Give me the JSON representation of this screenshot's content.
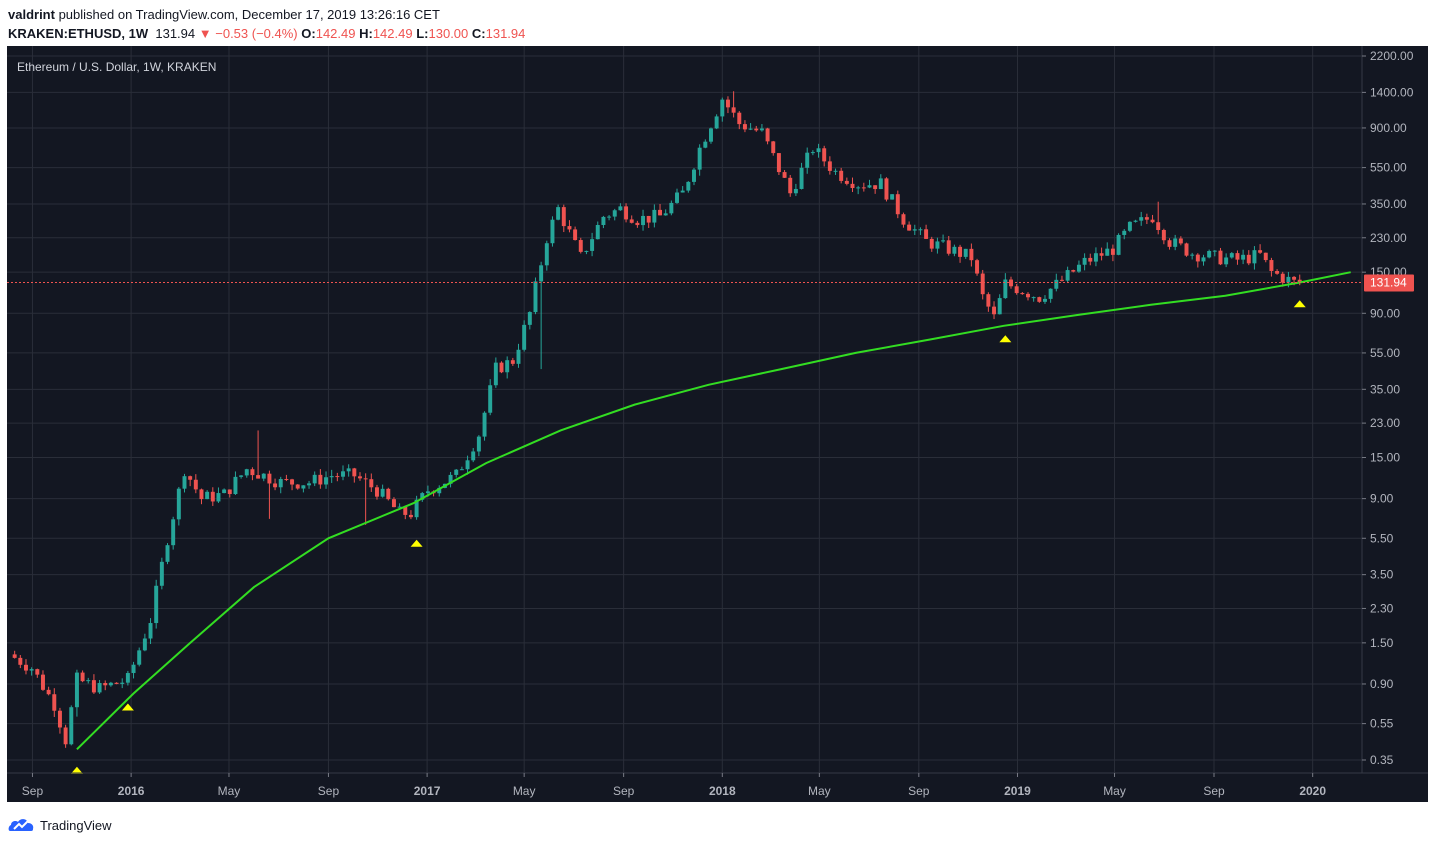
{
  "header": {
    "publisher": "valdrint",
    "published_text": " published on TradingView.com, December 17, 2019 13:26:16 CET",
    "symbol": "KRAKEN:ETHUSD, 1W",
    "last": "131.94",
    "change_arrow": "▼",
    "change": "−0.53 (−0.4%)",
    "o_label": "O:",
    "o_value": "142.49",
    "h_label": "H:",
    "h_value": "142.49",
    "l_label": "L:",
    "l_value": "130.00",
    "c_label": "C:",
    "c_value": "131.94"
  },
  "footer": {
    "brand": "TradingView",
    "brand_icon": "tradingview-logo-icon"
  },
  "colors": {
    "background": "#131722",
    "grid": "#2a2e39",
    "up": "#26a69a",
    "down": "#ef5350",
    "trendline": "#33dd22",
    "marker": "#ffff00",
    "text": "#b2b5be",
    "price_line": "#ef5350"
  },
  "chart_data": {
    "type": "candlestick",
    "title": "Ethereum / U.S. Dollar, 1W, KRAKEN",
    "y_scale": "log",
    "y_ticks": [
      "2200.00",
      "1400.00",
      "900.00",
      "550.00",
      "350.00",
      "230.00",
      "150.00",
      "90.00",
      "55.00",
      "35.00",
      "23.00",
      "15.00",
      "9.00",
      "5.50",
      "3.50",
      "2.30",
      "1.50",
      "0.90",
      "0.55",
      "0.35"
    ],
    "x_ticks": [
      {
        "label": "Sep",
        "date": "2015-09-01",
        "bold": false
      },
      {
        "label": "2016",
        "date": "2016-01-01",
        "bold": true
      },
      {
        "label": "May",
        "date": "2016-05-01",
        "bold": false
      },
      {
        "label": "Sep",
        "date": "2016-09-01",
        "bold": false
      },
      {
        "label": "2017",
        "date": "2017-01-01",
        "bold": true
      },
      {
        "label": "May",
        "date": "2017-05-01",
        "bold": false
      },
      {
        "label": "Sep",
        "date": "2017-09-01",
        "bold": false
      },
      {
        "label": "2018",
        "date": "2018-01-01",
        "bold": true
      },
      {
        "label": "May",
        "date": "2018-05-01",
        "bold": false
      },
      {
        "label": "Sep",
        "date": "2018-09-01",
        "bold": false
      },
      {
        "label": "2019",
        "date": "2019-01-01",
        "bold": true
      },
      {
        "label": "May",
        "date": "2019-05-01",
        "bold": false
      },
      {
        "label": "Sep",
        "date": "2019-09-01",
        "bold": false
      },
      {
        "label": "2020",
        "date": "2020-01-01",
        "bold": true
      }
    ],
    "last_price_label": "131.94",
    "last_price": 131.94,
    "price_path": [
      [
        "2015-08-10",
        1.3
      ],
      [
        "2015-09-07",
        1.1
      ],
      [
        "2015-10-05",
        0.7
      ],
      [
        "2015-10-19",
        0.45
      ],
      [
        "2015-11-02",
        0.95
      ],
      [
        "2015-11-30",
        0.85
      ],
      [
        "2016-01-04",
        0.95
      ],
      [
        "2016-02-01",
        2.0
      ],
      [
        "2016-02-22",
        5.5
      ],
      [
        "2016-03-14",
        13.0
      ],
      [
        "2016-04-04",
        9.0
      ],
      [
        "2016-05-02",
        9.5
      ],
      [
        "2016-05-30",
        13.0
      ],
      [
        "2016-06-20",
        12.0
      ],
      [
        "2016-07-11",
        11.0
      ],
      [
        "2016-08-15",
        11.0
      ],
      [
        "2016-09-12",
        12.0
      ],
      [
        "2016-10-10",
        12.0
      ],
      [
        "2016-11-07",
        10.0
      ],
      [
        "2016-12-05",
        7.5
      ],
      [
        "2016-12-19",
        7.5
      ],
      [
        "2017-01-09",
        10.0
      ],
      [
        "2017-02-13",
        12.0
      ],
      [
        "2017-03-13",
        20.0
      ],
      [
        "2017-04-03",
        45.0
      ],
      [
        "2017-04-24",
        50.0
      ],
      [
        "2017-05-15",
        90.0
      ],
      [
        "2017-06-05",
        230.0
      ],
      [
        "2017-06-19",
        330.0
      ],
      [
        "2017-07-17",
        180.0
      ],
      [
        "2017-08-14",
        300.0
      ],
      [
        "2017-09-04",
        330.0
      ],
      [
        "2017-09-25",
        290.0
      ],
      [
        "2017-10-23",
        300.0
      ],
      [
        "2017-11-20",
        400.0
      ],
      [
        "2017-12-11",
        700.0
      ],
      [
        "2018-01-08",
        1300.0
      ],
      [
        "2018-01-29",
        950.0
      ],
      [
        "2018-02-26",
        850.0
      ],
      [
        "2018-04-02",
        400.0
      ],
      [
        "2018-04-30",
        700.0
      ],
      [
        "2018-05-28",
        520.0
      ],
      [
        "2018-06-25",
        450.0
      ],
      [
        "2018-07-23",
        450.0
      ],
      [
        "2018-08-20",
        290.0
      ],
      [
        "2018-09-17",
        220.0
      ],
      [
        "2018-10-15",
        200.0
      ],
      [
        "2018-11-12",
        180.0
      ],
      [
        "2018-11-26",
        110.0
      ],
      [
        "2018-12-10",
        85.0
      ],
      [
        "2018-12-24",
        130.0
      ],
      [
        "2019-01-14",
        120.0
      ],
      [
        "2019-02-04",
        110.0
      ],
      [
        "2019-03-04",
        135.0
      ],
      [
        "2019-04-01",
        170.0
      ],
      [
        "2019-05-06",
        200.0
      ],
      [
        "2019-05-27",
        260.0
      ],
      [
        "2019-06-24",
        300.0
      ],
      [
        "2019-07-15",
        220.0
      ],
      [
        "2019-08-12",
        190.0
      ],
      [
        "2019-09-09",
        180.0
      ],
      [
        "2019-10-07",
        175.0
      ],
      [
        "2019-11-04",
        185.0
      ],
      [
        "2019-11-18",
        150.0
      ],
      [
        "2019-12-16",
        131.94
      ]
    ],
    "spikes": [
      {
        "date": "2015-10-26",
        "value": 0.6,
        "dir": "down"
      },
      {
        "date": "2016-06-06",
        "value": 21.0,
        "dir": "up"
      },
      {
        "date": "2016-06-20",
        "value": 7.0,
        "dir": "down"
      },
      {
        "date": "2016-10-17",
        "value": 6.5,
        "dir": "down"
      },
      {
        "date": "2017-05-22",
        "value": 45.0,
        "dir": "down"
      },
      {
        "date": "2018-01-15",
        "value": 1420.0,
        "dir": "up"
      },
      {
        "date": "2019-06-24",
        "value": 360.0,
        "dir": "up"
      }
    ],
    "trendline": [
      [
        "2015-10-26",
        0.4
      ],
      [
        "2016-01-04",
        0.8
      ],
      [
        "2016-03-14",
        1.5
      ],
      [
        "2016-06-01",
        3.0
      ],
      [
        "2016-09-01",
        5.5
      ],
      [
        "2016-12-15",
        8.5
      ],
      [
        "2017-03-15",
        14.0
      ],
      [
        "2017-06-15",
        21.0
      ],
      [
        "2017-09-15",
        29.0
      ],
      [
        "2017-12-15",
        37.0
      ],
      [
        "2018-03-15",
        45.0
      ],
      [
        "2018-06-15",
        55.0
      ],
      [
        "2018-09-15",
        65.0
      ],
      [
        "2018-12-15",
        77.0
      ],
      [
        "2019-03-15",
        88.0
      ],
      [
        "2019-06-15",
        100.0
      ],
      [
        "2019-09-15",
        112.0
      ],
      [
        "2019-12-16",
        131.94
      ],
      [
        "2020-02-17",
        150.0
      ]
    ],
    "markers": [
      {
        "date": "2015-10-26",
        "value": 0.31
      },
      {
        "date": "2015-12-28",
        "value": 0.68
      },
      {
        "date": "2016-12-19",
        "value": 5.2
      },
      {
        "date": "2018-12-17",
        "value": 66.0
      },
      {
        "date": "2019-12-16",
        "value": 102.0
      }
    ]
  }
}
